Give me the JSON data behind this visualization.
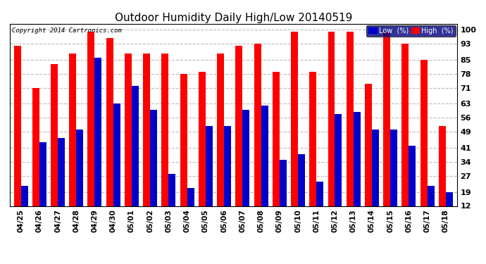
{
  "title": "Outdoor Humidity Daily High/Low 20140519",
  "copyright": "Copyright 2014 Cartronics.com",
  "dates": [
    "04/25",
    "04/26",
    "04/27",
    "04/28",
    "04/29",
    "04/30",
    "05/01",
    "05/02",
    "05/03",
    "05/04",
    "05/05",
    "05/06",
    "05/07",
    "05/08",
    "05/09",
    "05/10",
    "05/11",
    "05/12",
    "05/13",
    "05/14",
    "05/15",
    "05/16",
    "05/17",
    "05/18"
  ],
  "high": [
    92,
    71,
    83,
    88,
    99,
    96,
    88,
    88,
    88,
    78,
    79,
    88,
    92,
    93,
    79,
    99,
    79,
    99,
    99,
    73,
    99,
    93,
    85,
    52
  ],
  "low": [
    22,
    44,
    46,
    50,
    86,
    63,
    72,
    60,
    28,
    21,
    52,
    52,
    60,
    62,
    35,
    38,
    24,
    58,
    59,
    50,
    50,
    42,
    22,
    19
  ],
  "high_color": "#ff0000",
  "low_color": "#0000cc",
  "bg_color": "#ffffff",
  "grid_color": "#bbbbbb",
  "ymin": 12,
  "ymax": 103,
  "yticks": [
    12,
    19,
    27,
    34,
    41,
    49,
    56,
    63,
    71,
    78,
    85,
    93,
    100
  ],
  "bar_width": 0.38,
  "legend_low_label": "Low  (%)",
  "legend_high_label": "High  (%)"
}
